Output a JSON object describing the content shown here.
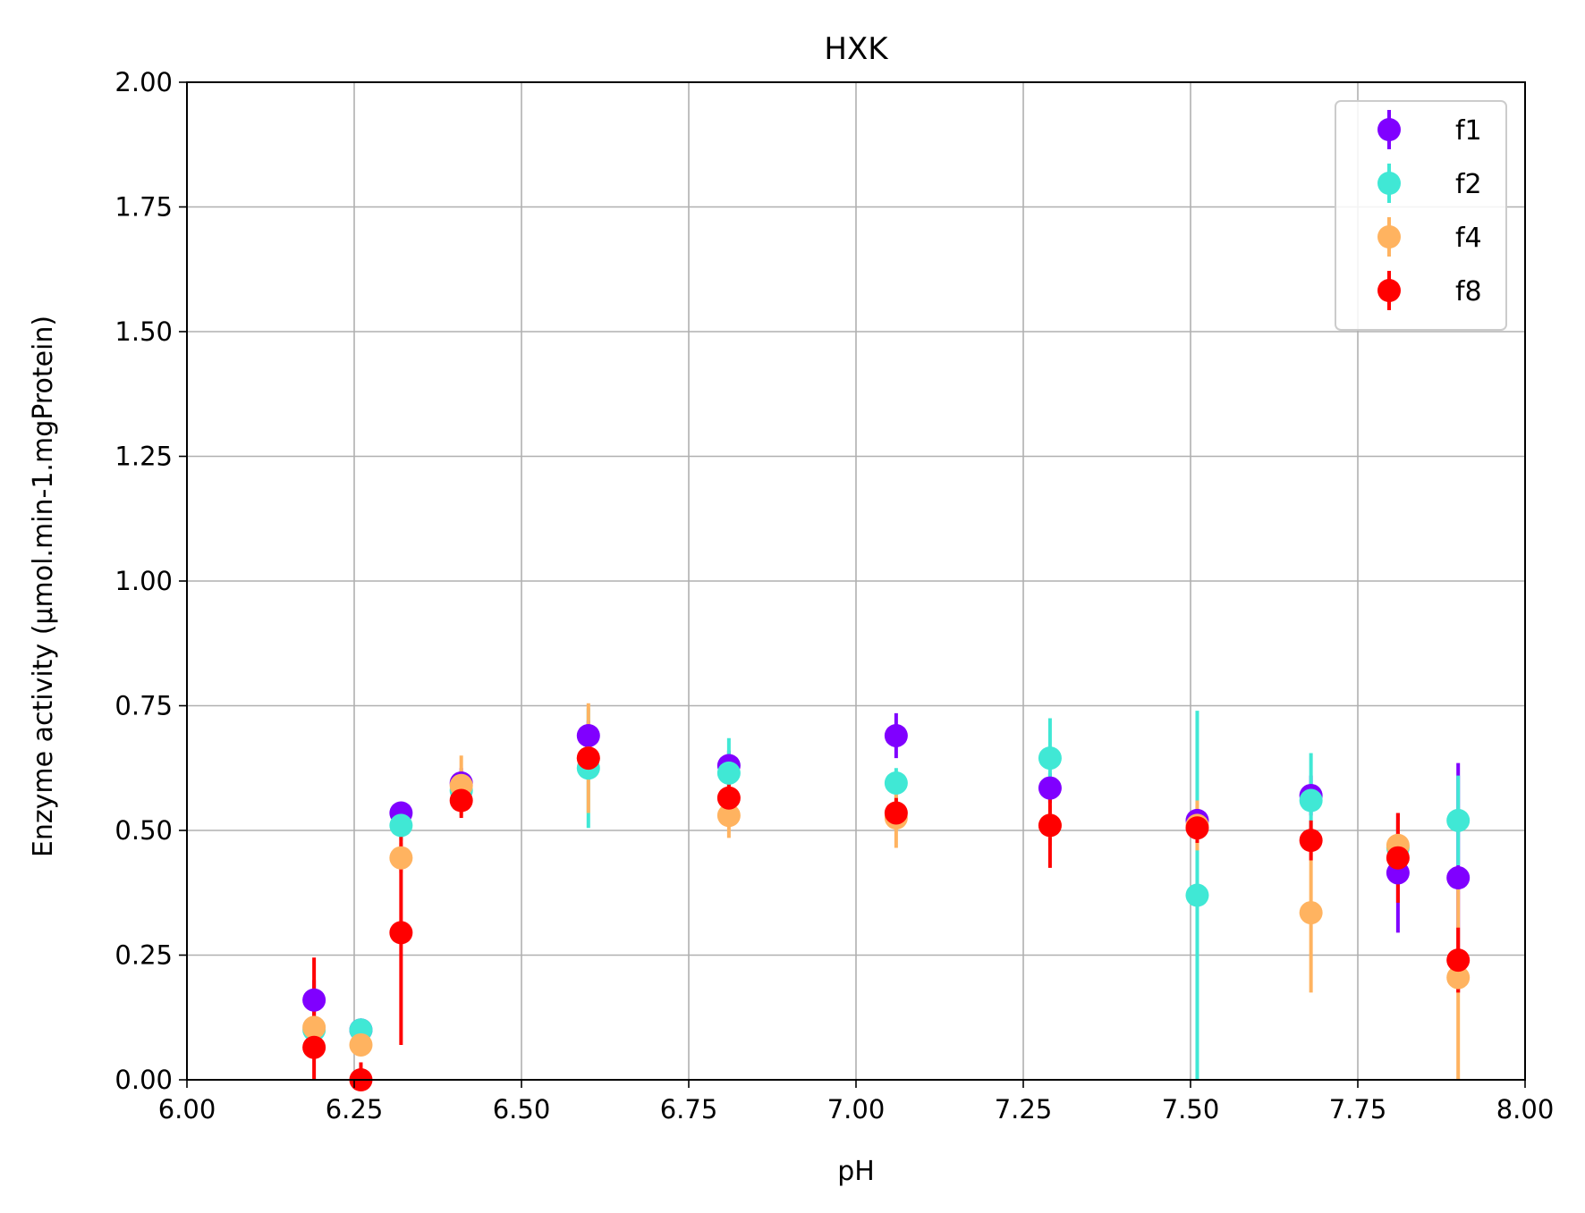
{
  "chart_data": {
    "type": "scatter",
    "title": "HXK",
    "xlabel": "pH",
    "ylabel": "Enzyme activity (µmol.min-1.mgProtein)",
    "xlim": [
      6.0,
      8.0
    ],
    "ylim": [
      0.0,
      2.0
    ],
    "xticks": [
      "6.00",
      "6.25",
      "6.50",
      "6.75",
      "7.00",
      "7.25",
      "7.50",
      "7.75",
      "8.00"
    ],
    "yticks": [
      "0.00",
      "0.25",
      "0.50",
      "0.75",
      "1.00",
      "1.25",
      "1.50",
      "1.75",
      "2.00"
    ],
    "grid": true,
    "legend_position": "top-right",
    "x": [
      6.19,
      6.26,
      6.32,
      6.41,
      6.6,
      6.81,
      7.06,
      7.29,
      7.51,
      7.68,
      7.81,
      7.9
    ],
    "series": [
      {
        "name": "f1",
        "color": "#8000ff",
        "y": [
          0.16,
          0.1,
          0.535,
          0.595,
          0.69,
          0.63,
          0.69,
          0.585,
          0.52,
          0.57,
          0.415,
          0.405
        ],
        "err": [
          0.04,
          0.02,
          0.02,
          0.03,
          0.03,
          0.03,
          0.045,
          0.03,
          0.03,
          0.04,
          0.12,
          0.23
        ]
      },
      {
        "name": "f2",
        "color": "#40e8d5",
        "y": [
          0.1,
          0.1,
          0.51,
          0.58,
          0.625,
          0.615,
          0.595,
          0.645,
          0.37,
          0.56,
          0.465,
          0.52
        ],
        "err": [
          0.02,
          0.02,
          0.03,
          0.03,
          0.12,
          0.07,
          0.03,
          0.08,
          0.37,
          0.095,
          0.04,
          0.09
        ]
      },
      {
        "name": "f4",
        "color": "#ffb360",
        "y": [
          0.105,
          0.07,
          0.445,
          0.59,
          0.645,
          0.53,
          0.525,
          0.51,
          0.51,
          0.335,
          0.47,
          0.205
        ],
        "err": [
          0.02,
          0.02,
          0.03,
          0.06,
          0.11,
          0.045,
          0.06,
          0.04,
          0.05,
          0.16,
          0.05,
          0.205
        ]
      },
      {
        "name": "f8",
        "color": "#ff0000",
        "y": [
          0.065,
          0.0,
          0.295,
          0.56,
          0.645,
          0.565,
          0.535,
          0.51,
          0.505,
          0.48,
          0.445,
          0.24
        ],
        "err": [
          0.18,
          0.035,
          0.225,
          0.035,
          0.03,
          0.04,
          0.03,
          0.085,
          0.03,
          0.04,
          0.09,
          0.065
        ]
      }
    ]
  }
}
